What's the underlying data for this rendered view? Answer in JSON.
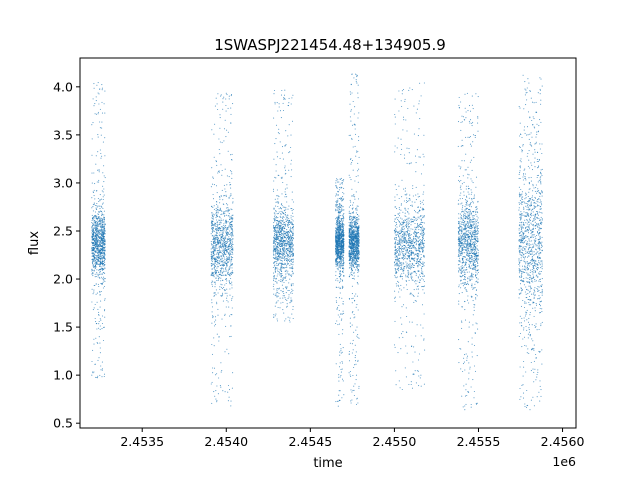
{
  "chart_data": {
    "type": "scatter",
    "title": "1SWASPJ221454.48+134905.9",
    "xlabel": "time",
    "ylabel": "flux",
    "x_offset_label": "1e6",
    "xlim": [
      2453130,
      2456080
    ],
    "ylim": [
      0.45,
      4.3
    ],
    "x_ticks": [
      2453500,
      2454000,
      2454500,
      2455000,
      2455500,
      2456000
    ],
    "x_tick_labels": [
      "2.4535",
      "2.4540",
      "2.4545",
      "2.4550",
      "2.4555",
      "2.4560"
    ],
    "y_ticks": [
      0.5,
      1.0,
      1.5,
      2.0,
      2.5,
      3.0,
      3.5,
      4.0
    ],
    "y_tick_labels": [
      "0.5",
      "1.0",
      "1.5",
      "2.0",
      "2.5",
      "3.0",
      "3.5",
      "4.0"
    ],
    "grid": false,
    "legend": "none",
    "marker_color": "#1f77b4",
    "series": [
      {
        "clusters": [
          {
            "x_start": 2453200,
            "x_end": 2453280,
            "median": 2.37,
            "core_low": 2.05,
            "core_high": 2.75,
            "min": 0.97,
            "max": 4.05
          },
          {
            "x_start": 2453910,
            "x_end": 2454040,
            "median": 2.33,
            "core_low": 1.9,
            "core_high": 2.85,
            "min": 0.67,
            "max": 3.95
          },
          {
            "x_start": 2454280,
            "x_end": 2454400,
            "median": 2.38,
            "core_low": 2.0,
            "core_high": 2.8,
            "min": 1.55,
            "max": 3.98
          },
          {
            "x_start": 2454650,
            "x_end": 2454700,
            "median": 2.38,
            "core_low": 2.1,
            "core_high": 2.7,
            "min": 0.65,
            "max": 3.05
          },
          {
            "x_start": 2454730,
            "x_end": 2454790,
            "median": 2.38,
            "core_low": 2.1,
            "core_high": 2.65,
            "min": 0.66,
            "max": 4.15
          },
          {
            "x_start": 2455000,
            "x_end": 2455180,
            "median": 2.35,
            "core_low": 1.95,
            "core_high": 2.8,
            "min": 0.85,
            "max": 4.05
          },
          {
            "x_start": 2455380,
            "x_end": 2455500,
            "median": 2.38,
            "core_low": 1.9,
            "core_high": 2.85,
            "min": 0.63,
            "max": 3.95
          },
          {
            "x_start": 2455740,
            "x_end": 2455880,
            "median": 2.38,
            "core_low": 1.6,
            "core_high": 3.2,
            "min": 0.63,
            "max": 4.12
          }
        ]
      }
    ]
  }
}
